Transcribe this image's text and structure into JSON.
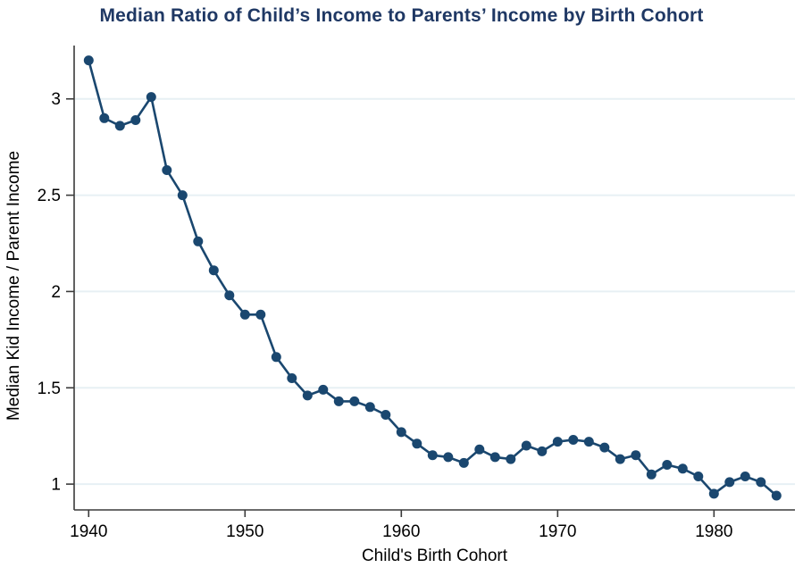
{
  "colors": {
    "line": "#1a476f",
    "marker": "#1a476f",
    "title": "#1f3864",
    "gridline": "#e7f0f4",
    "axis": "#3a3a3a",
    "text": "#000000",
    "background": "#ffffff"
  },
  "chart_data": {
    "type": "line",
    "title": "Median Ratio of Child’s Income to Parents’ Income by Birth Cohort",
    "xlabel": "Child's Birth Cohort",
    "ylabel": "Median Kid Income / Parent Income",
    "x": [
      1940,
      1941,
      1942,
      1943,
      1944,
      1945,
      1946,
      1947,
      1948,
      1949,
      1950,
      1951,
      1952,
      1953,
      1954,
      1955,
      1956,
      1957,
      1958,
      1959,
      1960,
      1961,
      1962,
      1963,
      1964,
      1965,
      1966,
      1967,
      1968,
      1969,
      1970,
      1971,
      1972,
      1973,
      1974,
      1975,
      1976,
      1977,
      1978,
      1979,
      1980,
      1981,
      1982,
      1983,
      1984
    ],
    "values": [
      3.2,
      2.9,
      2.86,
      2.89,
      3.01,
      2.63,
      2.5,
      2.26,
      2.11,
      1.98,
      1.88,
      1.88,
      1.66,
      1.55,
      1.46,
      1.49,
      1.43,
      1.43,
      1.4,
      1.36,
      1.27,
      1.21,
      1.15,
      1.14,
      1.11,
      1.18,
      1.14,
      1.13,
      1.2,
      1.17,
      1.22,
      1.23,
      1.22,
      1.19,
      1.13,
      1.15,
      1.05,
      1.1,
      1.08,
      1.04,
      0.95,
      1.01,
      1.04,
      1.01,
      0.94
    ],
    "x_ticks": [
      1940,
      1950,
      1960,
      1970,
      1980
    ],
    "x_tick_labels": [
      "1940",
      "1950",
      "1960",
      "1970",
      "1980"
    ],
    "y_tick_values": [
      1,
      1.5,
      2,
      2.5,
      3
    ],
    "y_tick_labels": [
      "1",
      "1.5",
      "2",
      "2.5",
      "3"
    ],
    "xlim": [
      1939.07,
      1985.18
    ],
    "ylim": [
      0.866,
      3.277
    ],
    "grid": "horizontal-only",
    "legend": "none",
    "marker": "filled-circle"
  }
}
